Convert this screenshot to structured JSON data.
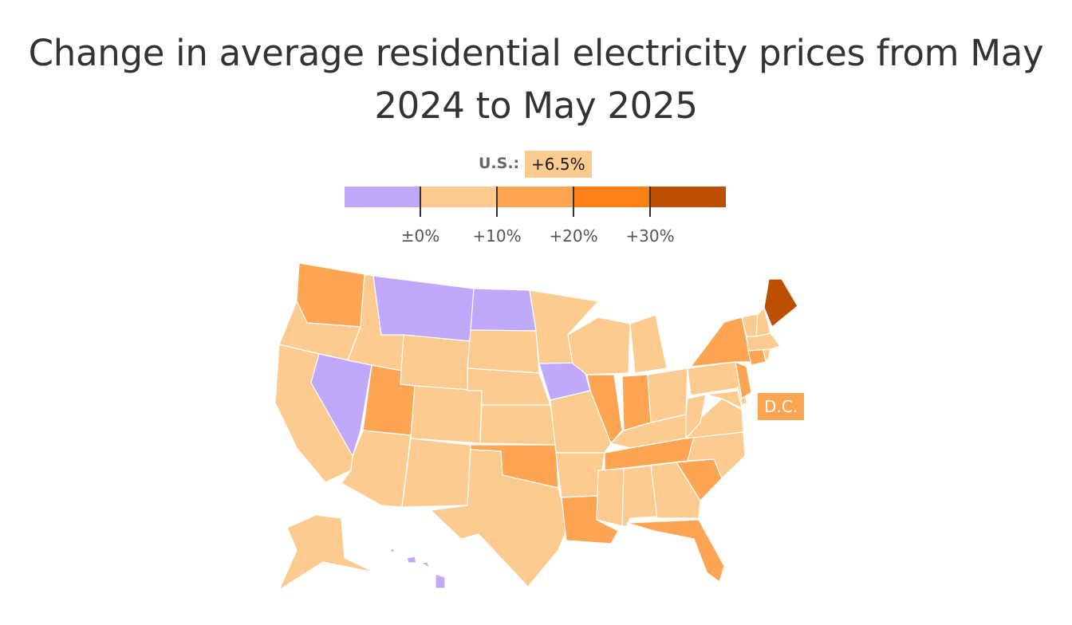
{
  "title": "Change in average residential electricity prices from May 2024 to May 2025",
  "us_average": {
    "label": "U.S.:",
    "value": "+6.5%",
    "change_pct": 6.5,
    "color": "#fdcb8f"
  },
  "legend": {
    "bins": [
      {
        "range": "below 0%",
        "color": "#c0a8fb"
      },
      {
        "range": "0% to 10%",
        "color": "#fdcb8f"
      },
      {
        "range": "10% to 20%",
        "color": "#fda553"
      },
      {
        "range": "20% to 30%",
        "color": "#fd7f16"
      },
      {
        "range": "above 30%",
        "color": "#bc4f03"
      }
    ],
    "ticks": [
      "±0%",
      "+10%",
      "+20%",
      "+30%"
    ]
  },
  "dc": {
    "label": "D.C.",
    "color": "#fda553"
  },
  "states": {
    "WA": "#fda553",
    "OR": "#fdcb8f",
    "CA": "#fdcb8f",
    "NV": "#c0a8fb",
    "ID": "#fdcb8f",
    "MT": "#c0a8fb",
    "WY": "#fdcb8f",
    "UT": "#fda553",
    "AZ": "#fdcb8f",
    "CO": "#fdcb8f",
    "NM": "#fdcb8f",
    "ND": "#c0a8fb",
    "SD": "#fdcb8f",
    "NE": "#fdcb8f",
    "KS": "#fdcb8f",
    "OK": "#fda553",
    "TX": "#fdcb8f",
    "MN": "#fdcb8f",
    "IA": "#c0a8fb",
    "MO": "#fdcb8f",
    "AR": "#fdcb8f",
    "LA": "#fda553",
    "WI": "#fdcb8f",
    "IL": "#fda553",
    "MI": "#fdcb8f",
    "IN": "#fda553",
    "OH": "#fdcb8f",
    "KY": "#fdcb8f",
    "TN": "#fda553",
    "MS": "#fdcb8f",
    "AL": "#fdcb8f",
    "GA": "#fdcb8f",
    "FL": "#fda553",
    "SC": "#fda553",
    "NC": "#fdcb8f",
    "VA": "#fdcb8f",
    "WV": "#fdcb8f",
    "PA": "#fdcb8f",
    "NY": "#fda553",
    "VT": "#fdcb8f",
    "NH": "#fdcb8f",
    "ME": "#bc4f03",
    "MA": "#fdcb8f",
    "CT": "#fda553",
    "RI": "#fdcb8f",
    "NJ": "#fda553",
    "DE": "#fdcb8f",
    "MD": "#fdcb8f",
    "AK": "#fdcb8f",
    "HI": "#c0a8fb"
  }
}
